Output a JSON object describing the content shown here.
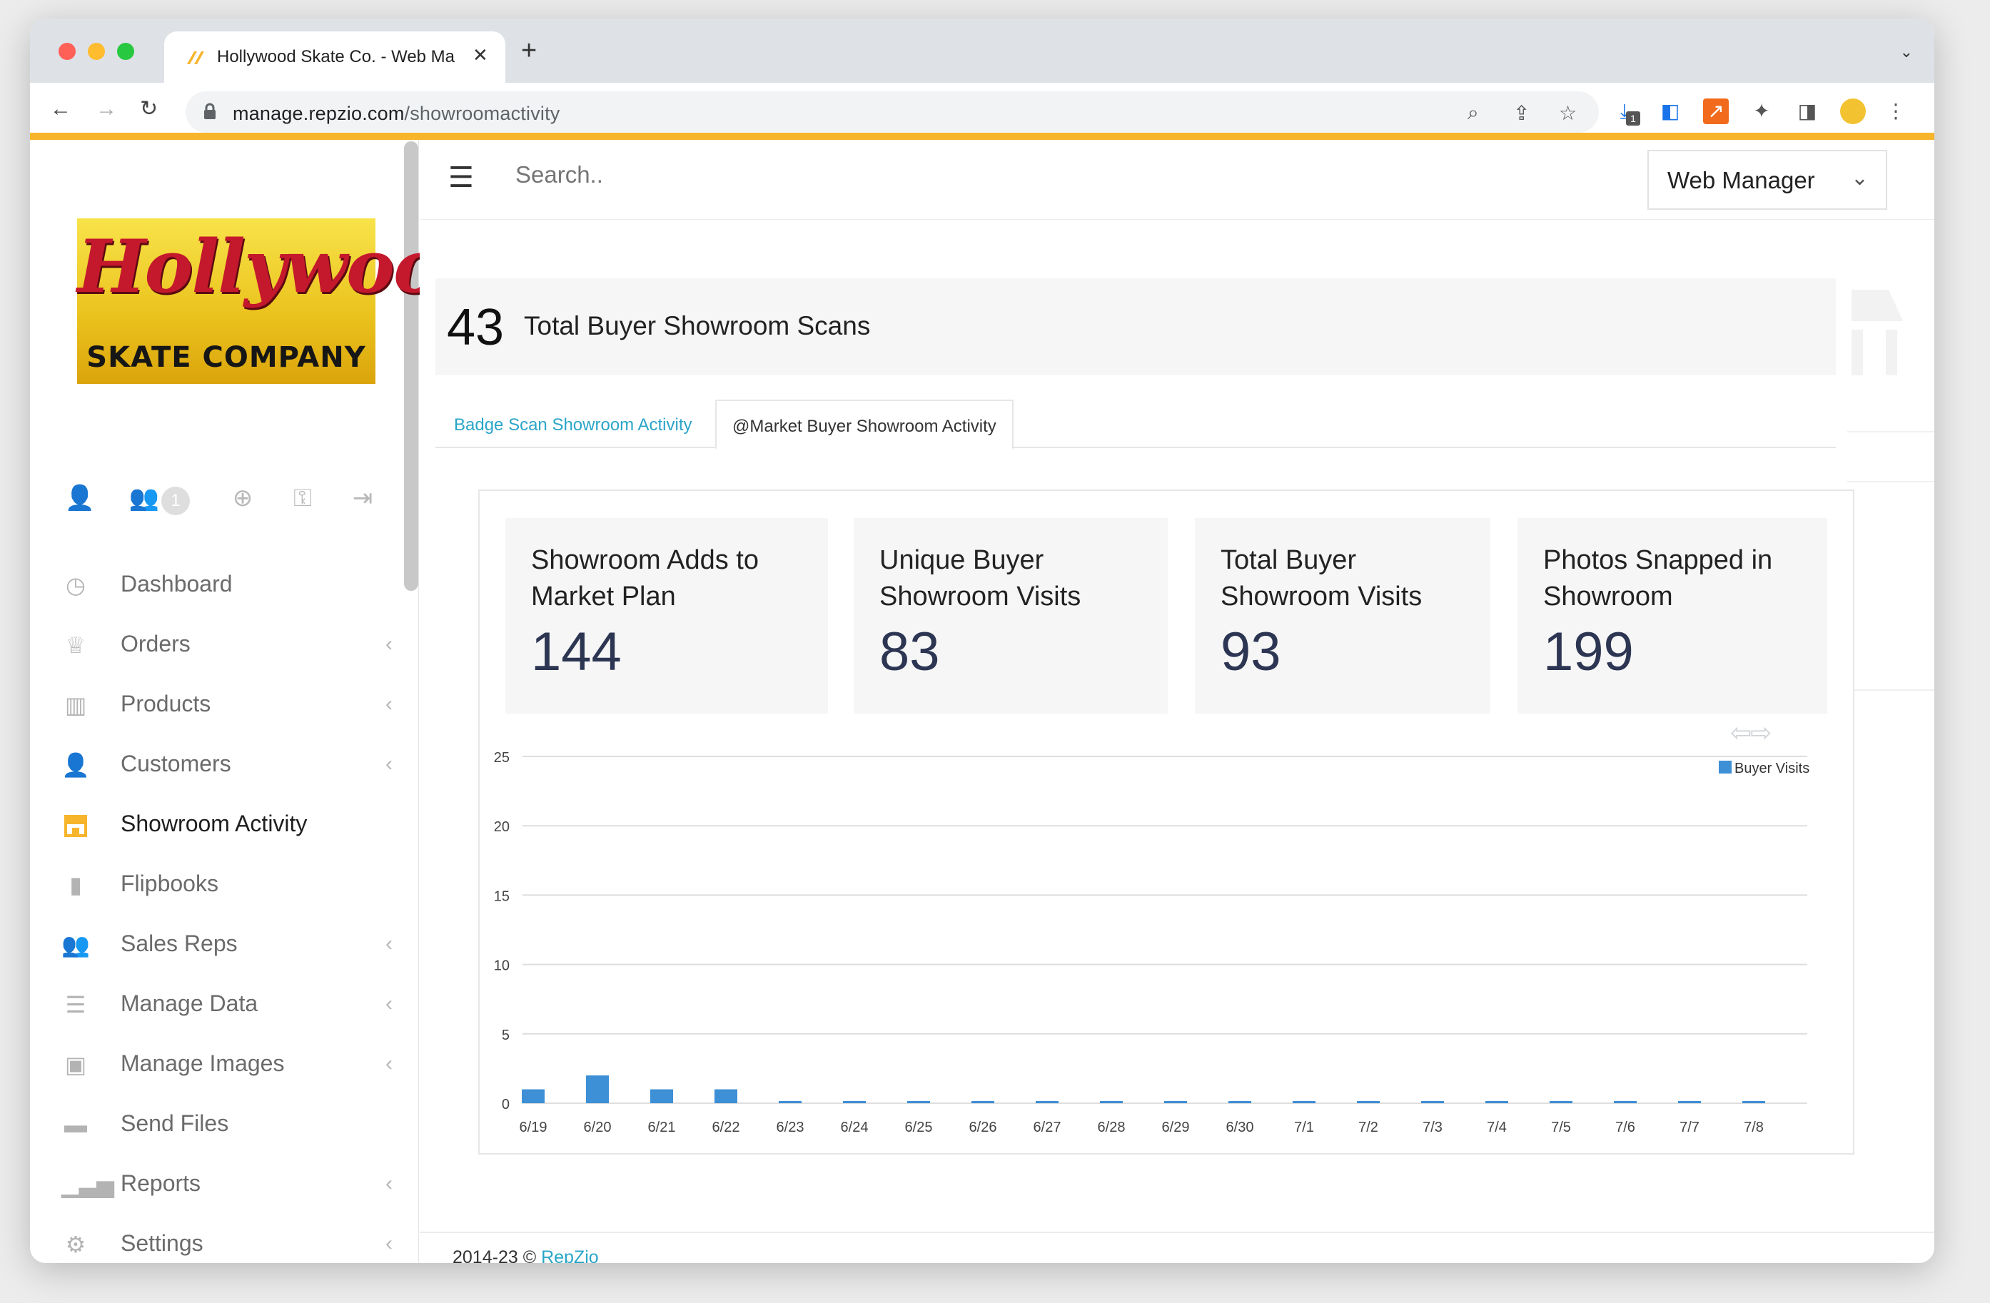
{
  "browser": {
    "tab_title": "Hollywood Skate Co. - Web Ma",
    "url_host": "manage.repzio.com",
    "url_path": "/showroomactivity",
    "download_badge": "1"
  },
  "sidebar": {
    "logo_script": "Hollywood",
    "logo_sub": "SKATE COMPANY",
    "quick_badge": "1",
    "items": [
      {
        "label": "Dashboard",
        "icon": "stopwatch-icon"
      },
      {
        "label": "Orders",
        "icon": "basket-icon"
      },
      {
        "label": "Products",
        "icon": "barcode-icon"
      },
      {
        "label": "Customers",
        "icon": "user-icon"
      },
      {
        "label": "Showroom Activity",
        "icon": "storefront-icon"
      },
      {
        "label": "Flipbooks",
        "icon": "book-icon"
      },
      {
        "label": "Sales Reps",
        "icon": "users-icon"
      },
      {
        "label": "Manage Data",
        "icon": "database-icon"
      },
      {
        "label": "Manage Images",
        "icon": "image-icon"
      },
      {
        "label": "Send Files",
        "icon": "folder-icon"
      },
      {
        "label": "Reports",
        "icon": "bar-chart-icon"
      },
      {
        "label": "Settings",
        "icon": "gear-icon"
      }
    ]
  },
  "topnav": {
    "search_placeholder": "Search..",
    "role": "Web Manager"
  },
  "summary": {
    "total": "43",
    "label": "Total Buyer Showroom Scans"
  },
  "tabs": {
    "badge_scan": "Badge Scan Showroom Activity",
    "market": "@Market Buyer Showroom Activity"
  },
  "stats": [
    {
      "label": "Showroom Adds to Market Plan",
      "value": "144"
    },
    {
      "label": "Unique Buyer Showroom Visits",
      "value": "83"
    },
    {
      "label": "Total Buyer Showroom Visits",
      "value": "93"
    },
    {
      "label": "Photos Snapped in Showroom",
      "value": "199"
    }
  ],
  "chart_data": {
    "type": "bar",
    "categories": [
      "6/19",
      "6/20",
      "6/21",
      "6/22",
      "6/23",
      "6/24",
      "6/25",
      "6/26",
      "6/27",
      "6/28",
      "6/29",
      "6/30",
      "7/1",
      "7/2",
      "7/3",
      "7/4",
      "7/5",
      "7/6",
      "7/7",
      "7/8"
    ],
    "series": [
      {
        "name": "Buyer Visits",
        "color": "#3d8fd6",
        "values": [
          1,
          2,
          1,
          1,
          0,
          0,
          0,
          0,
          0,
          0,
          0,
          0,
          0,
          0,
          0,
          0,
          0,
          0,
          0,
          0
        ]
      }
    ],
    "yticks": [
      "0",
      "5",
      "10",
      "15",
      "20",
      "25"
    ],
    "ylim": [
      0,
      25
    ],
    "grid": true,
    "legend": "top-right"
  },
  "footer": {
    "copyright": "2014-23 © ",
    "link": "RepZio"
  },
  "colors": {
    "accent": "#f7b52c",
    "link": "#2aa5c8",
    "stat_value": "#2c3552"
  }
}
